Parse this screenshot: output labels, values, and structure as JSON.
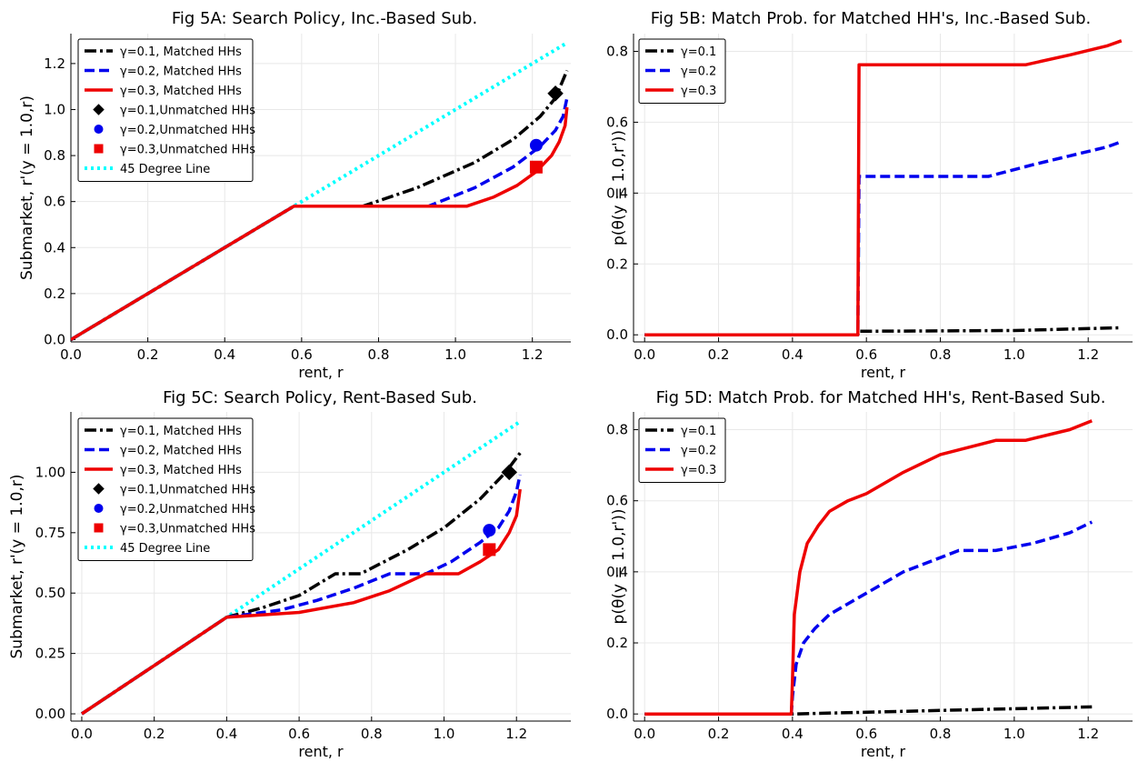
{
  "chart_data": [
    {
      "type": "line",
      "title": "Fig 5A: Search Policy, Inc.-Based Sub.",
      "xlabel": "rent, r",
      "ylabel": "Submarket, r'(y = 1.0,r)",
      "xlim": [
        0,
        1.3
      ],
      "ylim": [
        -0.01,
        1.33
      ],
      "xticks": [
        0.0,
        0.2,
        0.4,
        0.6,
        0.8,
        1.0,
        1.2
      ],
      "xtick_labels": [
        "0.0",
        "0.2",
        "0.4",
        "0.6",
        "0.8",
        "1.0",
        "1.2"
      ],
      "yticks": [
        0.0,
        0.2,
        0.4,
        0.6,
        0.8,
        1.0,
        1.2
      ],
      "ytick_labels": [
        "0.0",
        "0.2",
        "0.4",
        "0.6",
        "0.8",
        "1.0",
        "1.2"
      ],
      "grid": true,
      "legend_position": "top-left",
      "series": [
        {
          "name": "γ=0.1, Matched HHs",
          "color": "#000000",
          "style": "dashdot",
          "x": [
            0,
            0.58,
            0.76,
            0.9,
            1.05,
            1.15,
            1.22,
            1.26,
            1.29
          ],
          "y": [
            0,
            0.58,
            0.58,
            0.66,
            0.77,
            0.87,
            0.97,
            1.05,
            1.17
          ]
        },
        {
          "name": "γ=0.2, Matched HHs",
          "color": "#0000ee",
          "style": "dash",
          "x": [
            0,
            0.58,
            0.93,
            1.05,
            1.15,
            1.22,
            1.26,
            1.28,
            1.29
          ],
          "y": [
            0,
            0.58,
            0.58,
            0.66,
            0.75,
            0.84,
            0.91,
            0.97,
            1.05
          ]
        },
        {
          "name": "γ=0.3, Matched HHs",
          "color": "#ee0000",
          "style": "solid",
          "x": [
            0,
            0.58,
            1.03,
            1.1,
            1.16,
            1.21,
            1.25,
            1.27,
            1.285,
            1.29
          ],
          "y": [
            0,
            0.58,
            0.58,
            0.62,
            0.67,
            0.73,
            0.8,
            0.86,
            0.93,
            1.01
          ]
        },
        {
          "name": "γ=0.1,Unmatched HHs",
          "color": "#000000",
          "style": "marker",
          "marker": "diamond",
          "x": [
            1.26
          ],
          "y": [
            1.07
          ]
        },
        {
          "name": "γ=0.2,Unmatched HHs",
          "color": "#0000ee",
          "style": "marker",
          "marker": "circle",
          "x": [
            1.21
          ],
          "y": [
            0.845
          ]
        },
        {
          "name": "γ=0.3,Unmatched HHs",
          "color": "#ee0000",
          "style": "marker",
          "marker": "square",
          "x": [
            1.21
          ],
          "y": [
            0.75
          ]
        },
        {
          "name": "45 Degree Line",
          "color": "#00ffff",
          "style": "dot",
          "x": [
            0,
            1.29
          ],
          "y": [
            0,
            1.29
          ]
        }
      ]
    },
    {
      "type": "line",
      "title": "Fig 5B: Match Prob. for Matched HH's, Inc.-Based Sub.",
      "xlabel": "rent, r",
      "ylabel": "p(θ(y = 1.0,r'))",
      "xlim": [
        -0.03,
        1.32
      ],
      "ylim": [
        -0.02,
        0.85
      ],
      "xticks": [
        0.0,
        0.2,
        0.4,
        0.6,
        0.8,
        1.0,
        1.2
      ],
      "xtick_labels": [
        "0.0",
        "0.2",
        "0.4",
        "0.6",
        "0.8",
        "1.0",
        "1.2"
      ],
      "yticks": [
        0.0,
        0.2,
        0.4,
        0.6,
        0.8
      ],
      "ytick_labels": [
        "0.0",
        "0.2",
        "0.4",
        "0.6",
        "0.8"
      ],
      "grid": true,
      "legend_position": "top-left",
      "series": [
        {
          "name": "γ=0.1",
          "color": "#000000",
          "style": "dashdot",
          "x": [
            0,
            0.577,
            0.58,
            1.0,
            1.29
          ],
          "y": [
            0,
            0,
            0.01,
            0.012,
            0.02
          ]
        },
        {
          "name": "γ=0.2",
          "color": "#0000ee",
          "style": "dash",
          "x": [
            0,
            0.577,
            0.58,
            0.93,
            1.05,
            1.15,
            1.25,
            1.29
          ],
          "y": [
            0,
            0,
            0.447,
            0.447,
            0.48,
            0.505,
            0.53,
            0.545
          ]
        },
        {
          "name": "γ=0.3",
          "color": "#ee0000",
          "style": "solid",
          "x": [
            0,
            0.577,
            0.58,
            1.03,
            1.15,
            1.25,
            1.29
          ],
          "y": [
            0,
            0,
            0.762,
            0.762,
            0.79,
            0.815,
            0.83
          ]
        }
      ]
    },
    {
      "type": "line",
      "title": "Fig 5C: Search Policy, Rent-Based Sub.",
      "xlabel": "rent, r",
      "ylabel": "Submarket, r'(y = 1.0,r)",
      "xlim": [
        -0.03,
        1.35
      ],
      "ylim": [
        -0.03,
        1.25
      ],
      "xticks": [
        0.0,
        0.2,
        0.4,
        0.6,
        0.8,
        1.0,
        1.2
      ],
      "xtick_labels": [
        "0.0",
        "0.2",
        "0.4",
        "0.6",
        "0.8",
        "1.0",
        "1.2"
      ],
      "yticks": [
        0.0,
        0.25,
        0.5,
        0.75,
        1.0
      ],
      "ytick_labels": [
        "0.00",
        "0.25",
        "0.50",
        "0.75",
        "1.00"
      ],
      "grid": true,
      "legend_position": "top-left",
      "series": [
        {
          "name": "γ=0.1, Matched HHs",
          "color": "#000000",
          "style": "dashdot",
          "x": [
            0,
            0.4,
            0.5,
            0.6,
            0.7,
            0.77,
            0.9,
            1.0,
            1.1,
            1.17,
            1.21
          ],
          "y": [
            0,
            0.4,
            0.44,
            0.49,
            0.58,
            0.58,
            0.68,
            0.77,
            0.89,
            1.0,
            1.08
          ]
        },
        {
          "name": "γ=0.2, Matched HHs",
          "color": "#0000ee",
          "style": "dash",
          "x": [
            0,
            0.4,
            0.55,
            0.65,
            0.75,
            0.85,
            0.95,
            1.02,
            1.1,
            1.15,
            1.18,
            1.2,
            1.21
          ],
          "y": [
            0,
            0.4,
            0.43,
            0.47,
            0.52,
            0.58,
            0.58,
            0.63,
            0.71,
            0.77,
            0.84,
            0.92,
            0.99
          ]
        },
        {
          "name": "γ=0.3, Matched HHs",
          "color": "#ee0000",
          "style": "solid",
          "x": [
            0,
            0.4,
            0.6,
            0.75,
            0.85,
            0.95,
            1.04,
            1.1,
            1.15,
            1.18,
            1.2,
            1.21
          ],
          "y": [
            0,
            0.4,
            0.42,
            0.46,
            0.51,
            0.58,
            0.58,
            0.63,
            0.68,
            0.75,
            0.82,
            0.93
          ]
        },
        {
          "name": "γ=0.1,Unmatched HHs",
          "color": "#000000",
          "style": "marker",
          "marker": "diamond",
          "x": [
            1.18
          ],
          "y": [
            1.0
          ]
        },
        {
          "name": "γ=0.2,Unmatched HHs",
          "color": "#0000ee",
          "style": "marker",
          "marker": "circle",
          "x": [
            1.125
          ],
          "y": [
            0.76
          ]
        },
        {
          "name": "γ=0.3,Unmatched HHs",
          "color": "#ee0000",
          "style": "marker",
          "marker": "square",
          "x": [
            1.125
          ],
          "y": [
            0.68
          ]
        },
        {
          "name": "45 Degree Line",
          "color": "#00ffff",
          "style": "dot",
          "x": [
            0,
            1.21
          ],
          "y": [
            0,
            1.21
          ]
        }
      ]
    },
    {
      "type": "line",
      "title": "Fig 5D: Match Prob. for Matched HH's, Rent-Based Sub.",
      "xlabel": "rent, r",
      "ylabel": "p(θ(y = 1.0,r'))",
      "xlim": [
        -0.03,
        1.32
      ],
      "ylim": [
        -0.02,
        0.85
      ],
      "xticks": [
        0.0,
        0.2,
        0.4,
        0.6,
        0.8,
        1.0,
        1.2
      ],
      "xtick_labels": [
        "0.0",
        "0.2",
        "0.4",
        "0.6",
        "0.8",
        "1.0",
        "1.2"
      ],
      "yticks": [
        0.0,
        0.2,
        0.4,
        0.6,
        0.8
      ],
      "ytick_labels": [
        "0.0",
        "0.2",
        "0.4",
        "0.6",
        "0.8"
      ],
      "grid": true,
      "legend_position": "top-left",
      "series": [
        {
          "name": "γ=0.1",
          "color": "#000000",
          "style": "dashdot",
          "x": [
            0,
            0.397,
            0.4,
            0.8,
            1.21
          ],
          "y": [
            0,
            0,
            0.0,
            0.01,
            0.02
          ]
        },
        {
          "name": "γ=0.2",
          "color": "#0000ee",
          "style": "dash",
          "x": [
            0,
            0.397,
            0.4,
            0.41,
            0.43,
            0.46,
            0.5,
            0.55,
            0.6,
            0.7,
            0.85,
            0.95,
            1.05,
            1.15,
            1.21
          ],
          "y": [
            0,
            0,
            0.05,
            0.14,
            0.2,
            0.24,
            0.28,
            0.31,
            0.34,
            0.4,
            0.46,
            0.46,
            0.48,
            0.51,
            0.54
          ]
        },
        {
          "name": "γ=0.3",
          "color": "#ee0000",
          "style": "solid",
          "x": [
            0,
            0.397,
            0.4,
            0.405,
            0.42,
            0.44,
            0.47,
            0.5,
            0.55,
            0.6,
            0.7,
            0.8,
            0.95,
            1.03,
            1.15,
            1.21
          ],
          "y": [
            0,
            0,
            0.1,
            0.28,
            0.4,
            0.48,
            0.53,
            0.57,
            0.6,
            0.62,
            0.68,
            0.73,
            0.77,
            0.77,
            0.8,
            0.825
          ]
        }
      ]
    }
  ]
}
